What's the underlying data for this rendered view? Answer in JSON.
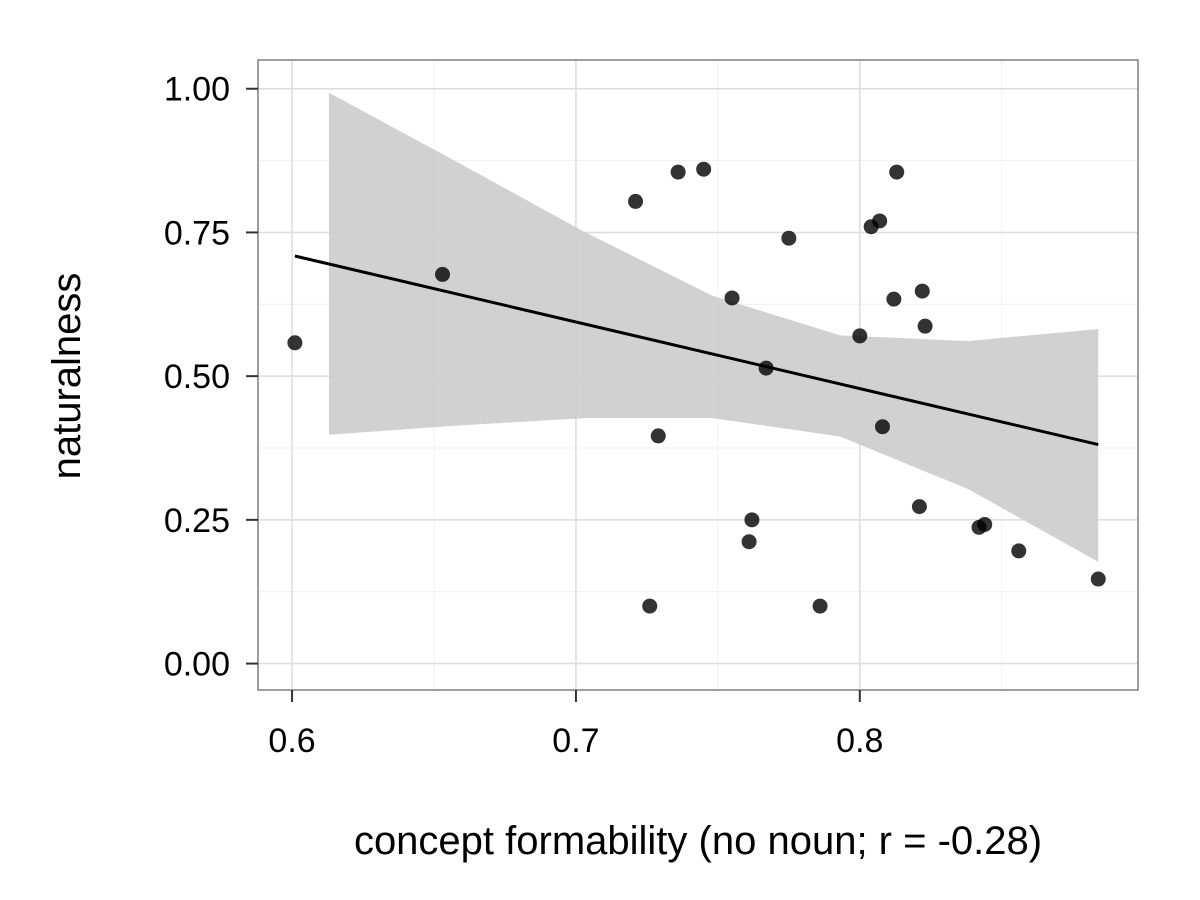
{
  "chart_data": {
    "type": "scatter",
    "title": "",
    "xlabel": "concept formability (no noun; r = -0.28)",
    "ylabel": "naturalness",
    "xlim": [
      0.588,
      0.898
    ],
    "ylim": [
      -0.046,
      1.05
    ],
    "x_ticks": [
      0.6,
      0.7,
      0.8
    ],
    "x_tick_labels": [
      "0.6",
      "0.7",
      "0.8"
    ],
    "y_ticks": [
      0.0,
      0.25,
      0.5,
      0.75,
      1.0
    ],
    "y_tick_labels": [
      "0.00",
      "0.25",
      "0.50",
      "0.75",
      "1.00"
    ],
    "grid": true,
    "legend": "none",
    "points": [
      {
        "x": 0.601,
        "y": 0.558
      },
      {
        "x": 0.653,
        "y": 0.677
      },
      {
        "x": 0.721,
        "y": 0.804
      },
      {
        "x": 0.726,
        "y": 0.1
      },
      {
        "x": 0.729,
        "y": 0.396
      },
      {
        "x": 0.736,
        "y": 0.855
      },
      {
        "x": 0.745,
        "y": 0.86
      },
      {
        "x": 0.755,
        "y": 0.636
      },
      {
        "x": 0.761,
        "y": 0.212
      },
      {
        "x": 0.762,
        "y": 0.25
      },
      {
        "x": 0.767,
        "y": 0.514
      },
      {
        "x": 0.775,
        "y": 0.74
      },
      {
        "x": 0.786,
        "y": 0.1
      },
      {
        "x": 0.8,
        "y": 0.57
      },
      {
        "x": 0.804,
        "y": 0.76
      },
      {
        "x": 0.807,
        "y": 0.77
      },
      {
        "x": 0.808,
        "y": 0.412
      },
      {
        "x": 0.812,
        "y": 0.634
      },
      {
        "x": 0.813,
        "y": 0.855
      },
      {
        "x": 0.821,
        "y": 0.273
      },
      {
        "x": 0.822,
        "y": 0.648
      },
      {
        "x": 0.823,
        "y": 0.587
      },
      {
        "x": 0.842,
        "y": 0.237
      },
      {
        "x": 0.844,
        "y": 0.242
      },
      {
        "x": 0.856,
        "y": 0.196
      },
      {
        "x": 0.884,
        "y": 0.147
      }
    ],
    "fit_line": {
      "x": [
        0.601,
        0.884
      ],
      "y": [
        0.709,
        0.381
      ]
    },
    "confidence_band": {
      "x": [
        0.613,
        0.658,
        0.703,
        0.748,
        0.793,
        0.838,
        0.884
      ],
      "upper": [
        0.993,
        0.873,
        0.751,
        0.64,
        0.571,
        0.561,
        0.582
      ],
      "lower": [
        0.398,
        0.414,
        0.427,
        0.427,
        0.395,
        0.304,
        0.177
      ]
    },
    "colors": {
      "points": "#000000",
      "fit_line": "#000000",
      "band": "#cccccc",
      "grid_major": "#dddddd",
      "grid_minor": "#f0f0f0",
      "panel_border": "#7f7f7f"
    }
  }
}
